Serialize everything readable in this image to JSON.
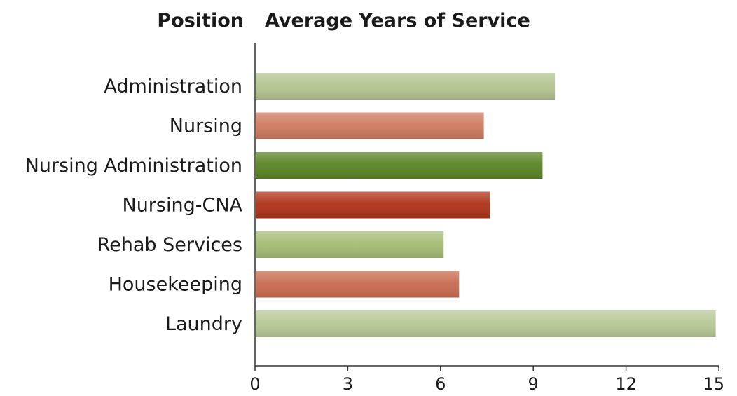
{
  "chart_data": {
    "type": "bar",
    "orientation": "horizontal",
    "category_header": "Position",
    "title": "Average Years of Service",
    "categories": [
      "Administration",
      "Nursing",
      "Nursing Administration",
      "Nursing-CNA",
      "Rehab Services",
      "Housekeeping",
      "Laundry"
    ],
    "values": [
      9.7,
      7.4,
      9.3,
      7.6,
      6.1,
      6.6,
      14.9
    ],
    "colors": [
      "#b3c58f",
      "#cf7a5e",
      "#5a8424",
      "#ae3217",
      "#a5bc75",
      "#c96c50",
      "#b7c897"
    ],
    "xlim": [
      0,
      15
    ],
    "xticks": [
      "0",
      "3",
      "6",
      "9",
      "12",
      "15"
    ],
    "grid": false,
    "legend": "none"
  }
}
